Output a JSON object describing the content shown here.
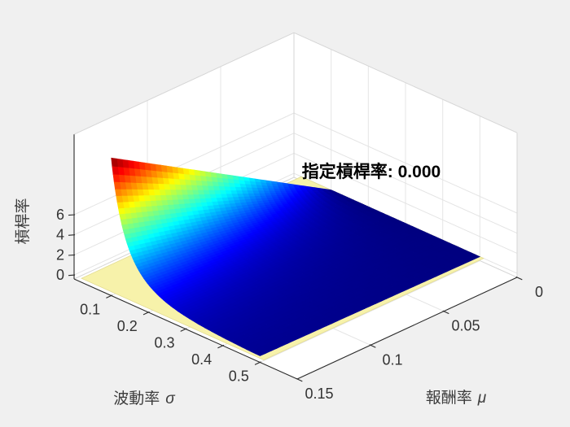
{
  "figure": {
    "background": "#f0f0f0",
    "wall_color": "#ffffff",
    "grid_color": "#e4e4e4",
    "box_edge_color": "#d6d6d6",
    "axis_line_color": "#2b2b2b",
    "tick_label_color": "#333333"
  },
  "annotation": {
    "text": "指定槓桿率: 0.000",
    "color": "#000000"
  },
  "axes": {
    "x": {
      "label": "波動率",
      "symbol": "σ",
      "min": 0,
      "max": 0.6,
      "ticks": [
        0.1,
        0.2,
        0.3,
        0.4,
        0.5
      ],
      "tick_labels": [
        "0.1",
        "0.2",
        "0.3",
        "0.4",
        "0.5"
      ]
    },
    "y": {
      "label": "報酬率",
      "symbol": "μ",
      "min": 0,
      "max": 0.15,
      "ticks": [
        0,
        0.05,
        0.1,
        0.15
      ],
      "tick_labels": [
        "0",
        "0.05",
        "0.1",
        "0.15"
      ]
    },
    "z": {
      "label": "槓桿率",
      "min": -0.4,
      "max": 14,
      "ticks": [
        0,
        2,
        4,
        6
      ],
      "tick_labels": [
        "0",
        "2",
        "4",
        "6"
      ]
    }
  },
  "chart_data": {
    "type": "surface",
    "title": "",
    "xlabel": "波動率 σ",
    "ylabel": "報酬率 μ",
    "zlabel": "槓桿率",
    "annotation": "指定槓桿率: 0.000",
    "colormap": "jet",
    "grid": true,
    "view": "3d, azimuth -37.5, elevation 30",
    "xlim": [
      0,
      0.6
    ],
    "ylim": [
      0,
      0.15
    ],
    "zlim": [
      -0.4,
      14
    ],
    "surface": {
      "name": "槓桿率曲面",
      "sigma_range": [
        0.1,
        0.5
      ],
      "mu_range": [
        0,
        0.15
      ],
      "peak_z": 13.31,
      "exponent": 2.5,
      "ref_sigma": 0.1,
      "model": "z = 13.31 * (0.1/sigma)^2.5 * (mu/0.15)"
    },
    "reference_plane": {
      "z": 0,
      "label": "指定槓桿率: 0.000",
      "color": "#f7f2aa",
      "edge_color": "#e3dc92"
    },
    "sigma_samples": [
      0.1,
      0.15,
      0.2,
      0.25,
      0.3,
      0.35,
      0.4,
      0.45,
      0.5
    ],
    "mu_samples": [
      0,
      0.025,
      0.05,
      0.075,
      0.1,
      0.125,
      0.15
    ],
    "z_grid": [
      [
        0,
        2.22,
        4.44,
        6.66,
        8.87,
        11.09,
        13.31
      ],
      [
        0,
        0.81,
        1.61,
        2.42,
        3.22,
        4.03,
        4.83
      ],
      [
        0,
        0.39,
        0.78,
        1.18,
        1.57,
        1.96,
        2.35
      ],
      [
        0,
        0.22,
        0.45,
        0.67,
        0.9,
        1.12,
        1.35
      ],
      [
        0,
        0.14,
        0.28,
        0.43,
        0.57,
        0.71,
        0.85
      ],
      [
        0,
        0.1,
        0.19,
        0.29,
        0.39,
        0.48,
        0.58
      ],
      [
        0,
        0.07,
        0.14,
        0.21,
        0.28,
        0.35,
        0.42
      ],
      [
        0,
        0.05,
        0.1,
        0.15,
        0.21,
        0.26,
        0.31
      ],
      [
        0,
        0.04,
        0.08,
        0.12,
        0.16,
        0.2,
        0.24
      ]
    ]
  }
}
